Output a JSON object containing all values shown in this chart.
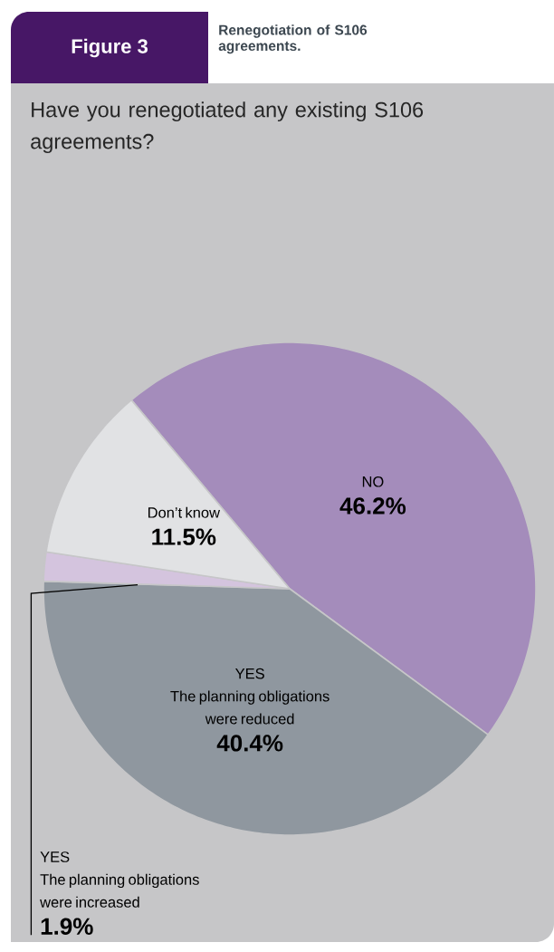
{
  "chart_data": {
    "type": "pie",
    "title": "Renegotiation of S106 agreements.",
    "subtitle": "Have you renegotiated any existing S106 agreements?",
    "annotations": [
      "Figure 3"
    ],
    "categories": [
      "NO",
      "YES The planning obligations were reduced",
      "YES The planning obligations were increased",
      "Don’t know"
    ],
    "values": [
      46.2,
      40.4,
      1.9,
      11.5
    ],
    "value_labels": [
      "46.2%",
      "40.4%",
      "1.9%",
      "11.5%"
    ],
    "colors": [
      "#a48cbb",
      "#8f979f",
      "#d4c4de",
      "#e1e2e4"
    ]
  }
}
